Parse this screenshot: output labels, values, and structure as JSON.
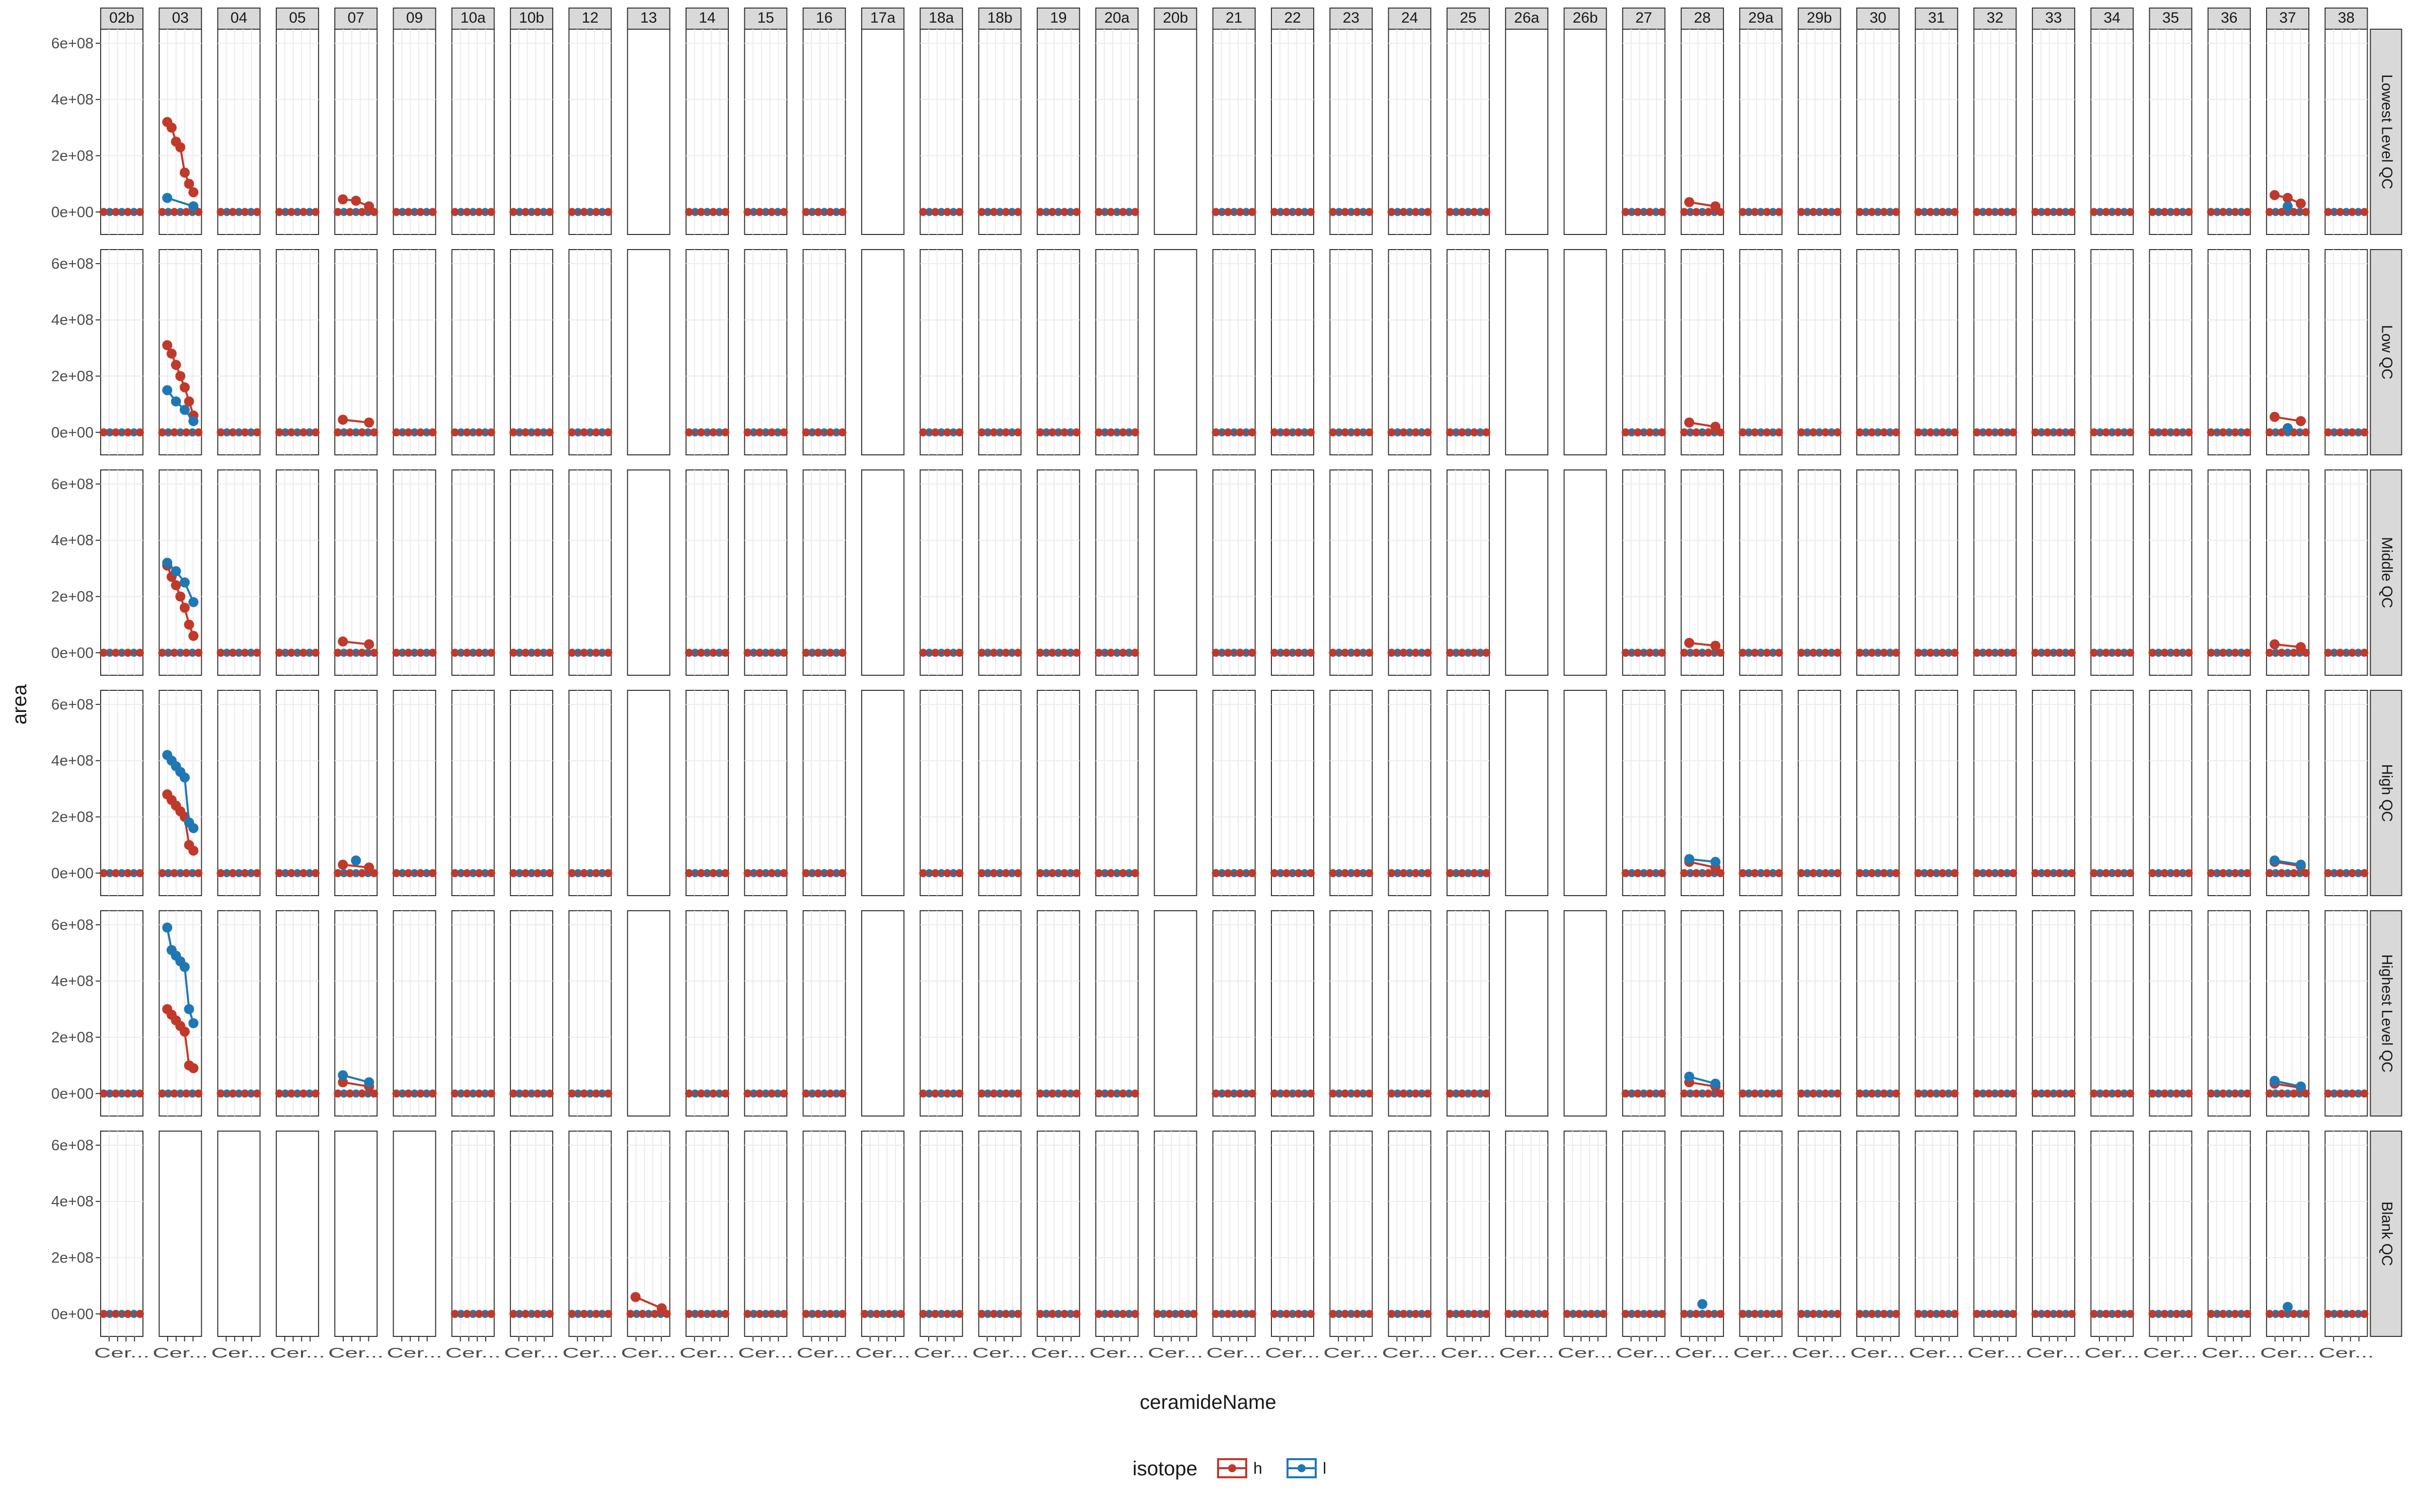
{
  "chart_data": {
    "type": "scatter",
    "title": "",
    "xlabel": "ceramideName",
    "ylabel": "area",
    "ylim": [
      -80000000,
      650000000
    ],
    "yticks": [
      0,
      200000000,
      400000000,
      600000000
    ],
    "ytick_labels": [
      "0e+00",
      "2e+08",
      "4e+08",
      "6e+08"
    ],
    "grid": true,
    "legend": {
      "title": "isotope",
      "placement": "bottom",
      "entries": [
        {
          "key": "h",
          "color": "#c0392b"
        },
        {
          "key": "l",
          "color": "#1f78b4"
        }
      ]
    },
    "x_tick_text": "Cer...",
    "column_facets": [
      "02b",
      "03",
      "04",
      "05",
      "07",
      "09",
      "10a",
      "10b",
      "12",
      "13",
      "14",
      "15",
      "16",
      "17a",
      "18a",
      "18b",
      "19",
      "20a",
      "20b",
      "21",
      "22",
      "23",
      "24",
      "25",
      "26a",
      "26b",
      "27",
      "28",
      "29a",
      "29b",
      "30",
      "31",
      "32",
      "33",
      "34",
      "35",
      "36",
      "37",
      "38"
    ],
    "row_facets": [
      "Lowest Level QC",
      "Low QC",
      "Middle QC",
      "High QC",
      "Highest Level QC",
      "Blank QC"
    ],
    "empty_panels": [
      {
        "row": "Lowest Level QC",
        "cols": [
          "13",
          "17a",
          "20b",
          "26a",
          "26b"
        ]
      },
      {
        "row": "Low QC",
        "cols": [
          "13",
          "17a",
          "20b",
          "26a",
          "26b"
        ]
      },
      {
        "row": "Middle QC",
        "cols": [
          "13",
          "17a",
          "20b",
          "26a",
          "26b"
        ]
      },
      {
        "row": "High QC",
        "cols": [
          "13",
          "17a",
          "20b",
          "26a",
          "26b"
        ]
      },
      {
        "row": "Highest Level QC",
        "cols": [
          "13",
          "17a",
          "20b",
          "26a",
          "26b"
        ]
      },
      {
        "row": "Blank QC",
        "cols": [
          "03",
          "04",
          "05",
          "07",
          "09"
        ]
      }
    ],
    "series": [
      {
        "name": "h",
        "peaks": [
          {
            "row": "Lowest Level QC",
            "col": "03",
            "values": [
              320000000,
              300000000,
              250000000,
              230000000,
              140000000,
              100000000,
              70000000
            ]
          },
          {
            "row": "Lowest Level QC",
            "col": "07",
            "values": [
              45000000,
              40000000,
              20000000
            ]
          },
          {
            "row": "Lowest Level QC",
            "col": "28",
            "values": [
              35000000,
              20000000
            ]
          },
          {
            "row": "Lowest Level QC",
            "col": "37",
            "values": [
              60000000,
              50000000,
              30000000
            ]
          },
          {
            "row": "Low QC",
            "col": "03",
            "values": [
              310000000,
              280000000,
              240000000,
              200000000,
              160000000,
              110000000,
              60000000
            ]
          },
          {
            "row": "Low QC",
            "col": "07",
            "values": [
              45000000,
              35000000
            ]
          },
          {
            "row": "Low QC",
            "col": "28",
            "values": [
              35000000,
              20000000
            ]
          },
          {
            "row": "Low QC",
            "col": "37",
            "values": [
              55000000,
              40000000
            ]
          },
          {
            "row": "Middle QC",
            "col": "03",
            "values": [
              310000000,
              270000000,
              240000000,
              200000000,
              160000000,
              100000000,
              60000000
            ]
          },
          {
            "row": "Middle QC",
            "col": "07",
            "values": [
              40000000,
              30000000
            ]
          },
          {
            "row": "Middle QC",
            "col": "28",
            "values": [
              35000000,
              25000000
            ]
          },
          {
            "row": "Middle QC",
            "col": "37",
            "values": [
              30000000,
              20000000
            ]
          },
          {
            "row": "High QC",
            "col": "03",
            "values": [
              280000000,
              260000000,
              240000000,
              220000000,
              200000000,
              100000000,
              80000000
            ]
          },
          {
            "row": "High QC",
            "col": "07",
            "values": [
              30000000,
              20000000
            ]
          },
          {
            "row": "High QC",
            "col": "28",
            "values": [
              40000000,
              20000000
            ]
          },
          {
            "row": "High QC",
            "col": "37",
            "values": [
              40000000,
              25000000
            ]
          },
          {
            "row": "Highest Level QC",
            "col": "03",
            "values": [
              300000000,
              280000000,
              260000000,
              240000000,
              220000000,
              100000000,
              90000000
            ]
          },
          {
            "row": "Highest Level QC",
            "col": "07",
            "values": [
              40000000,
              25000000
            ]
          },
          {
            "row": "Highest Level QC",
            "col": "28",
            "values": [
              40000000,
              25000000
            ]
          },
          {
            "row": "Highest Level QC",
            "col": "37",
            "values": [
              35000000,
              20000000
            ]
          },
          {
            "row": "Blank QC",
            "col": "13",
            "values": [
              60000000,
              20000000
            ]
          }
        ]
      },
      {
        "name": "l",
        "peaks": [
          {
            "row": "Lowest Level QC",
            "col": "03",
            "values": [
              50000000,
              20000000
            ]
          },
          {
            "row": "Lowest Level QC",
            "col": "37",
            "values": [
              20000000
            ]
          },
          {
            "row": "Low QC",
            "col": "03",
            "values": [
              150000000,
              110000000,
              80000000,
              40000000
            ]
          },
          {
            "row": "Low QC",
            "col": "37",
            "values": [
              15000000
            ]
          },
          {
            "row": "Middle QC",
            "col": "03",
            "values": [
              320000000,
              290000000,
              250000000,
              180000000
            ]
          },
          {
            "row": "High QC",
            "col": "03",
            "values": [
              420000000,
              400000000,
              380000000,
              360000000,
              340000000,
              180000000,
              160000000
            ]
          },
          {
            "row": "High QC",
            "col": "07",
            "values": [
              45000000
            ]
          },
          {
            "row": "High QC",
            "col": "28",
            "values": [
              50000000,
              40000000
            ]
          },
          {
            "row": "High QC",
            "col": "37",
            "values": [
              45000000,
              30000000
            ]
          },
          {
            "row": "Highest Level QC",
            "col": "03",
            "values": [
              590000000,
              510000000,
              490000000,
              470000000,
              450000000,
              300000000,
              250000000
            ]
          },
          {
            "row": "Highest Level QC",
            "col": "07",
            "values": [
              65000000,
              40000000
            ]
          },
          {
            "row": "Highest Level QC",
            "col": "28",
            "values": [
              60000000,
              35000000
            ]
          },
          {
            "row": "Highest Level QC",
            "col": "37",
            "values": [
              45000000,
              25000000
            ]
          },
          {
            "row": "Blank QC",
            "col": "28",
            "values": [
              35000000
            ]
          },
          {
            "row": "Blank QC",
            "col": "37",
            "values": [
              25000000
            ]
          }
        ]
      }
    ]
  }
}
